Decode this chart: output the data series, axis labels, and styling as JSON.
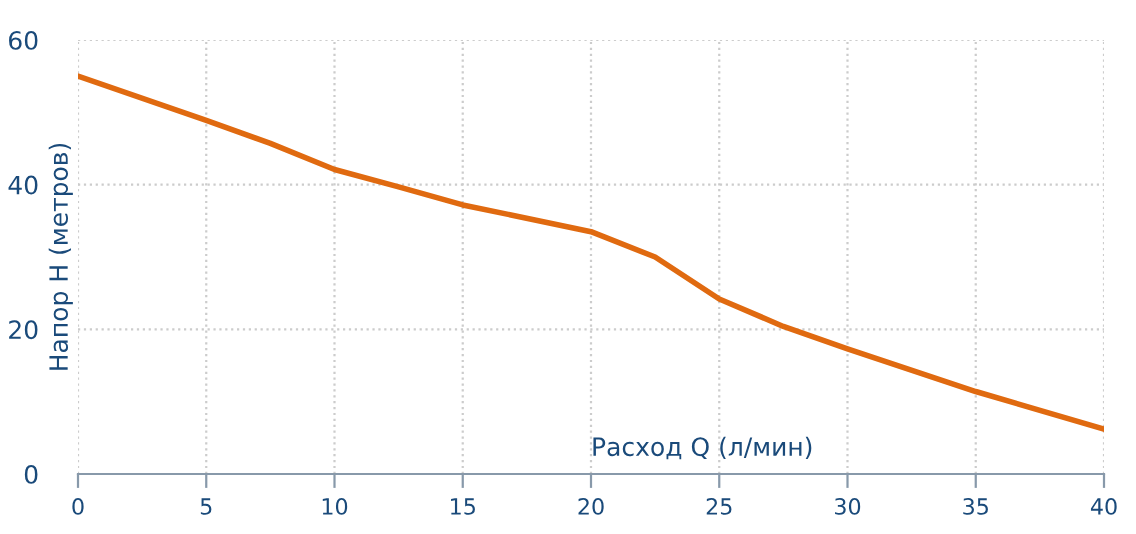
{
  "chart_data": {
    "type": "line",
    "xlabel": "Расход Q (л/мин)",
    "ylabel": "Напор H (метров)",
    "x": [
      0,
      5,
      7.5,
      10,
      12.5,
      15,
      20,
      22.5,
      25,
      27.5,
      30,
      35,
      40
    ],
    "series": [
      {
        "color": "#e06a10",
        "values": [
          55,
          48.9,
          45.7,
          42.1,
          39.7,
          37.2,
          33.5,
          30,
          24.2,
          20.4,
          17.3,
          11.4,
          6.2
        ]
      }
    ],
    "xlim": [
      0,
      40
    ],
    "xticks": [
      0,
      5,
      10,
      15,
      20,
      25,
      30,
      35,
      40
    ],
    "ylim": [
      0,
      60
    ],
    "yticks": [
      0,
      20,
      40,
      60
    ],
    "grid": true,
    "marker": "none",
    "line_style": "solid"
  }
}
